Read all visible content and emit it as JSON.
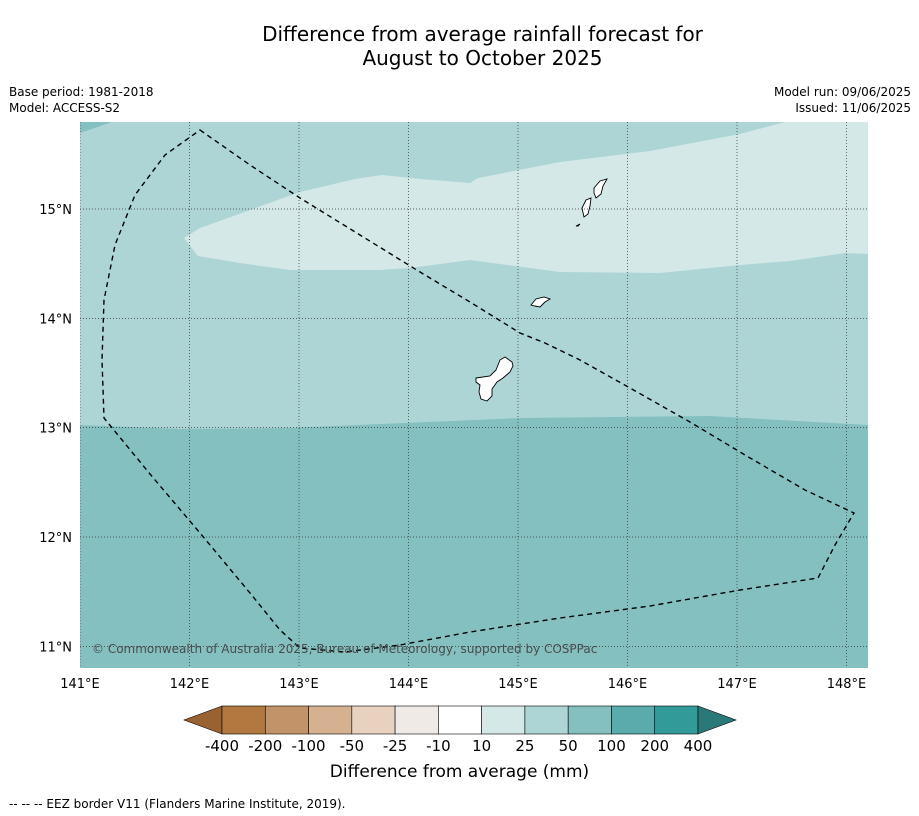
{
  "title_line1": "Difference from average rainfall forecast for",
  "title_line2": "August to October 2025",
  "meta_left": {
    "base_period": "Base period: 1981-2018",
    "model": "Model: ACCESS-S2"
  },
  "meta_right": {
    "model_run": "Model run: 09/06/2025",
    "issued": "Issued: 11/06/2025"
  },
  "map": {
    "lon_ticks": [
      "141°E",
      "142°E",
      "143°E",
      "144°E",
      "145°E",
      "146°E",
      "147°E",
      "148°E"
    ],
    "lat_ticks": [
      "15°N",
      "14°N",
      "13°N",
      "12°N",
      "11°N"
    ],
    "copyright": "© Commonwealth of Australia 2025, Bureau of Meteorology, supported by COSPPac",
    "colors": {
      "band_10_25": "#d4e8e8",
      "band_25_50": "#add5d5",
      "band_50_100": "#84c0c0",
      "land": "#ffffff",
      "gridline": "#333333",
      "eez_border": "#000000"
    }
  },
  "colorbar": {
    "title": "Difference from average (mm)",
    "labels": [
      "-400",
      "-200",
      "-100",
      "-50",
      "-25",
      "-10",
      "10",
      "25",
      "50",
      "100",
      "200",
      "400"
    ],
    "colors": [
      "#9a6230",
      "#b27840",
      "#c29268",
      "#d5b190",
      "#e8d2bf",
      "#f0eae6",
      "#ffffff",
      "#d4e8e8",
      "#add5d5",
      "#84c0c0",
      "#5aacac",
      "#339a9a",
      "#2a7878"
    ]
  },
  "footnote": "--  --  -- EEZ border V11 (Flanders Marine Institute, 2019)."
}
